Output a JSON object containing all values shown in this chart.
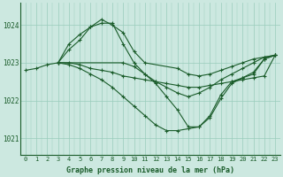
{
  "background_color": "#cce8e0",
  "grid_color": "#99ccbb",
  "line_color": "#1a5c2a",
  "marker_color": "#1a5c2a",
  "xlabel": "Graphe pression niveau de la mer (hPa)",
  "xlabel_fontsize": 6.0,
  "tick_fontsize": 5.0,
  "ytick_fontsize": 5.5,
  "ylim": [
    1020.55,
    1024.6
  ],
  "xlim": [
    -0.5,
    23.5
  ],
  "yticks": [
    1021,
    1022,
    1023,
    1024
  ],
  "xticks": [
    0,
    1,
    2,
    3,
    4,
    5,
    6,
    7,
    8,
    9,
    10,
    11,
    12,
    13,
    14,
    15,
    16,
    17,
    18,
    19,
    20,
    21,
    22,
    23
  ],
  "lines": [
    {
      "x": [
        0,
        1,
        2,
        3,
        4,
        5,
        6,
        7,
        8,
        9,
        10,
        11,
        12,
        13,
        14,
        15,
        16,
        17,
        18,
        19,
        20,
        21,
        22,
        23
      ],
      "y": [
        1022.8,
        1022.85,
        1022.95,
        1023.0,
        1023.0,
        1022.95,
        1022.85,
        1022.8,
        1022.75,
        1022.65,
        1022.6,
        1022.55,
        1022.5,
        1022.45,
        1022.4,
        1022.35,
        1022.35,
        1022.4,
        1022.45,
        1022.5,
        1022.55,
        1022.6,
        1022.65,
        1023.2
      ],
      "marker": "+",
      "markersize": 3.0,
      "linewidth": 0.8
    },
    {
      "x": [
        3,
        4,
        5,
        6,
        7,
        8,
        9,
        10,
        11,
        12,
        13,
        14,
        15,
        16,
        17,
        18,
        19,
        20,
        21,
        22,
        23
      ],
      "y": [
        1023.0,
        1023.35,
        1023.6,
        1023.95,
        1024.05,
        1024.05,
        1023.5,
        1023.0,
        1022.7,
        1022.5,
        1022.35,
        1022.2,
        1022.1,
        1022.2,
        1022.35,
        1022.55,
        1022.7,
        1022.85,
        1023.0,
        1023.15,
        1023.2
      ],
      "marker": "+",
      "markersize": 3.0,
      "linewidth": 0.8
    },
    {
      "x": [
        3,
        4,
        5,
        6,
        7,
        8,
        9,
        10,
        11,
        14,
        15,
        16,
        17,
        18,
        19,
        20,
        21,
        22,
        23
      ],
      "y": [
        1023.0,
        1023.5,
        1023.75,
        1023.95,
        1024.15,
        1024.0,
        1023.8,
        1023.3,
        1023.0,
        1022.85,
        1022.7,
        1022.65,
        1022.7,
        1022.8,
        1022.9,
        1023.0,
        1023.1,
        1023.15,
        1023.2
      ],
      "marker": "+",
      "markersize": 3.0,
      "linewidth": 0.8
    },
    {
      "x": [
        3,
        4,
        5,
        6,
        7,
        8,
        9,
        10,
        11,
        12,
        13,
        14,
        15,
        16,
        17,
        18,
        19,
        20,
        21,
        22,
        23
      ],
      "y": [
        1023.0,
        1022.95,
        1022.85,
        1022.7,
        1022.55,
        1022.35,
        1022.1,
        1021.85,
        1021.6,
        1021.35,
        1021.2,
        1021.2,
        1021.25,
        1021.3,
        1021.55,
        1022.05,
        1022.45,
        1022.6,
        1022.75,
        1023.1,
        1023.2
      ],
      "marker": "+",
      "markersize": 3.0,
      "linewidth": 0.8
    },
    {
      "x": [
        3,
        9,
        10,
        11,
        12,
        13,
        14,
        15,
        16,
        17,
        18,
        19,
        20,
        21,
        22,
        23
      ],
      "y": [
        1023.0,
        1023.0,
        1022.9,
        1022.7,
        1022.45,
        1022.1,
        1021.75,
        1021.3,
        1021.3,
        1021.6,
        1022.15,
        1022.5,
        1022.6,
        1022.7,
        1023.1,
        1023.2
      ],
      "marker": "+",
      "markersize": 3.0,
      "linewidth": 0.8
    }
  ]
}
